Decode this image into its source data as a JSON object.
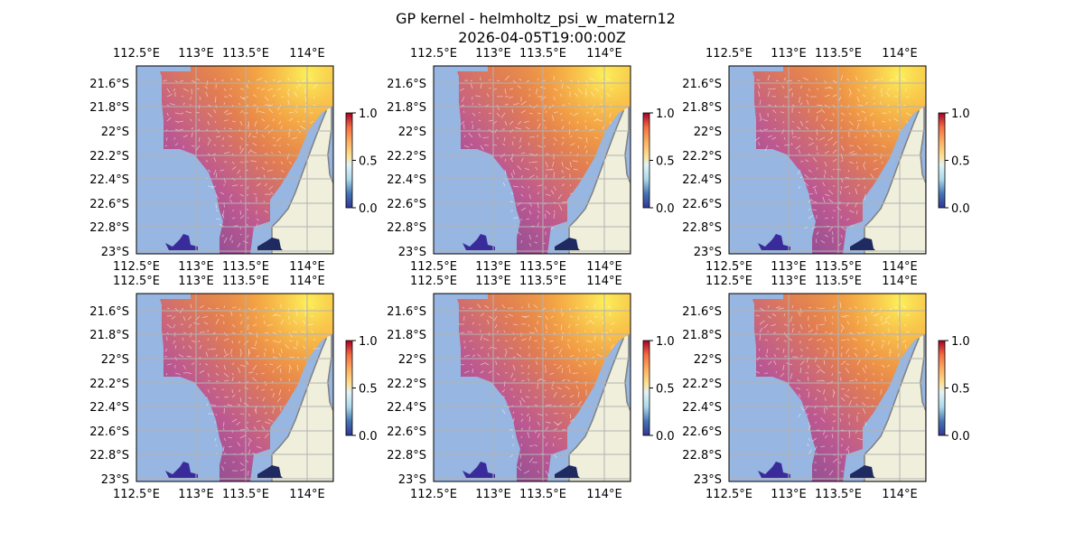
{
  "figure": {
    "title_line1": "GP kernel - helmholtz_psi_w_matern12",
    "title_line2": "2026-04-05T19:00:00Z"
  },
  "map": {
    "lon_ticks": [
      "112.5°E",
      "113°E",
      "113.5°E",
      "114°E"
    ],
    "lat_ticks": [
      "21.6°S",
      "21.8°S",
      "22°S",
      "22.2°S",
      "22.4°S",
      "22.6°S",
      "22.8°S",
      "23°S"
    ],
    "colorbar_ticks": [
      "1.0",
      "0.5",
      "0.0"
    ],
    "colors": {
      "ocean": "#97b6e1",
      "land": "#efefdb",
      "coast": "#808080",
      "grid": "#b3b3b3"
    }
  },
  "panels": [
    {
      "name": "panel-1",
      "colormap": "RdYlBu_r"
    },
    {
      "name": "panel-2",
      "colormap": "RdYlBu_r"
    },
    {
      "name": "panel-3",
      "colormap": "RdYlBu_r"
    },
    {
      "name": "panel-4",
      "colormap": "RdYlBu_r"
    },
    {
      "name": "panel-5",
      "colormap": "RdYlBu_r"
    },
    {
      "name": "panel-6",
      "colormap": "RdYlBu_r"
    }
  ]
}
